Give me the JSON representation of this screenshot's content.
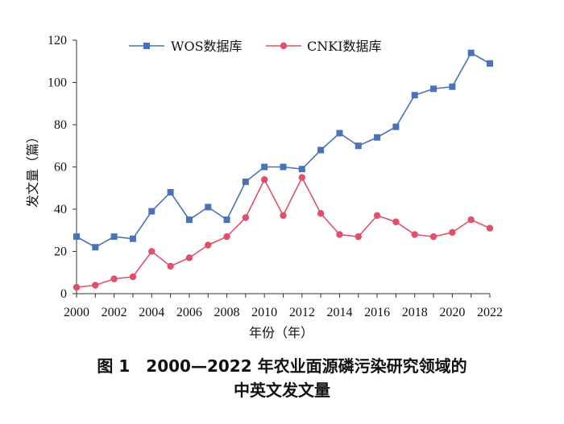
{
  "chart_data": {
    "type": "line",
    "title": "",
    "xlabel": "年份（年）",
    "ylabel": "发文量（篇）",
    "ylim": [
      0,
      120
    ],
    "yticks": [
      0,
      20,
      40,
      60,
      80,
      100,
      120
    ],
    "x": [
      2000,
      2001,
      2002,
      2003,
      2004,
      2005,
      2006,
      2007,
      2008,
      2009,
      2010,
      2011,
      2012,
      2013,
      2014,
      2015,
      2016,
      2017,
      2018,
      2019,
      2020,
      2021,
      2022
    ],
    "xtick_labels": [
      "2000",
      "2002",
      "2004",
      "2006",
      "2008",
      "2010",
      "2012",
      "2014",
      "2016",
      "2018",
      "2020",
      "2022"
    ],
    "legend_position": "top",
    "series": [
      {
        "name": "WOS数据库",
        "color": "#4a72b8",
        "marker": "square",
        "values": [
          27,
          22,
          27,
          26,
          39,
          48,
          35,
          41,
          35,
          53,
          60,
          60,
          59,
          68,
          76,
          70,
          74,
          79,
          94,
          97,
          98,
          114,
          109
        ]
      },
      {
        "name": "CNKI数据库",
        "color": "#e0506a",
        "marker": "circle",
        "values": [
          3,
          4,
          7,
          8,
          20,
          13,
          17,
          23,
          27,
          36,
          54,
          37,
          55,
          38,
          28,
          27,
          37,
          34,
          28,
          27,
          29,
          35,
          31
        ]
      }
    ]
  },
  "caption": {
    "line1": "图 1　2000—2022 年农业面源磷污染研究领域的",
    "line2": "中英文发文量"
  }
}
